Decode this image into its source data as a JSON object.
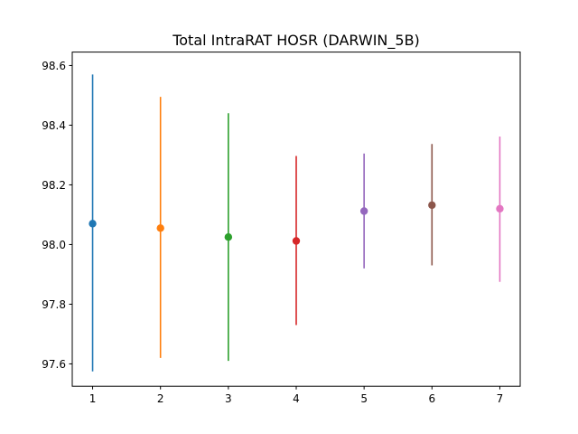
{
  "chart_data": {
    "type": "scatter",
    "title": "Total IntraRAT HOSR (DARWIN_5B)",
    "xlabel": "",
    "ylabel": "",
    "xlim": [
      0.7,
      7.3
    ],
    "ylim": [
      97.525,
      98.645
    ],
    "x_ticks": [
      1,
      2,
      3,
      4,
      5,
      6,
      7
    ],
    "y_ticks": [
      97.6,
      97.8,
      98.0,
      98.2,
      98.4,
      98.6
    ],
    "y_tick_labels": [
      "97.6",
      "97.8",
      "98.0",
      "98.2",
      "98.4",
      "98.6"
    ],
    "grid": false,
    "legend": "none",
    "series": [
      {
        "x": 1,
        "y": 98.07,
        "low": 97.575,
        "high": 98.57,
        "color": "#1f77b4"
      },
      {
        "x": 2,
        "y": 98.055,
        "low": 97.62,
        "high": 98.495,
        "color": "#ff7f0e"
      },
      {
        "x": 3,
        "y": 98.025,
        "low": 97.61,
        "high": 98.44,
        "color": "#2ca02c"
      },
      {
        "x": 4,
        "y": 98.012,
        "low": 97.73,
        "high": 98.297,
        "color": "#d62728"
      },
      {
        "x": 5,
        "y": 98.112,
        "low": 97.92,
        "high": 98.305,
        "color": "#9467bd"
      },
      {
        "x": 6,
        "y": 98.132,
        "low": 97.93,
        "high": 98.337,
        "color": "#8c564b"
      },
      {
        "x": 7,
        "y": 98.12,
        "low": 97.875,
        "high": 98.362,
        "color": "#e377c2"
      }
    ]
  }
}
